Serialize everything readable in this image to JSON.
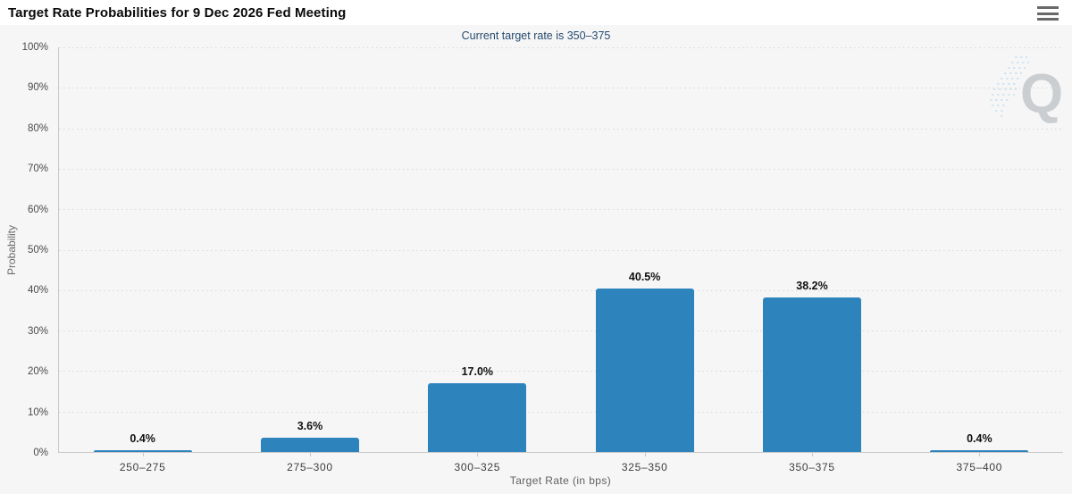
{
  "header": {
    "title": "Target Rate Probabilities for 9 Dec 2026 Fed Meeting"
  },
  "chart": {
    "subtitle": "Current target rate is 350–375",
    "watermark_letter": "Q",
    "colors": {
      "bar": "#2d84bd",
      "subtitle_text": "#274b6d",
      "chart_background": "#f6f6f7"
    }
  },
  "chart_data": {
    "type": "bar",
    "title": "Target Rate Probabilities for 9 Dec 2026 Fed Meeting",
    "subtitle": "Current target rate is 350–375",
    "categories": [
      "250–275",
      "275–300",
      "300–325",
      "325–350",
      "350–375",
      "375–400"
    ],
    "values": [
      0.4,
      3.6,
      17.0,
      40.5,
      38.2,
      0.4
    ],
    "data_labels": [
      "0.4%",
      "3.6%",
      "17.0%",
      "40.5%",
      "38.2%",
      "0.4%"
    ],
    "xlabel": "Target Rate (in bps)",
    "ylabel": "Probability",
    "ylim": [
      0,
      100
    ],
    "y_ticks": [
      "0%",
      "10%",
      "20%",
      "30%",
      "40%",
      "50%",
      "60%",
      "70%",
      "80%",
      "90%",
      "100%"
    ],
    "grid": "horizontal-dotted",
    "legend": "none"
  }
}
